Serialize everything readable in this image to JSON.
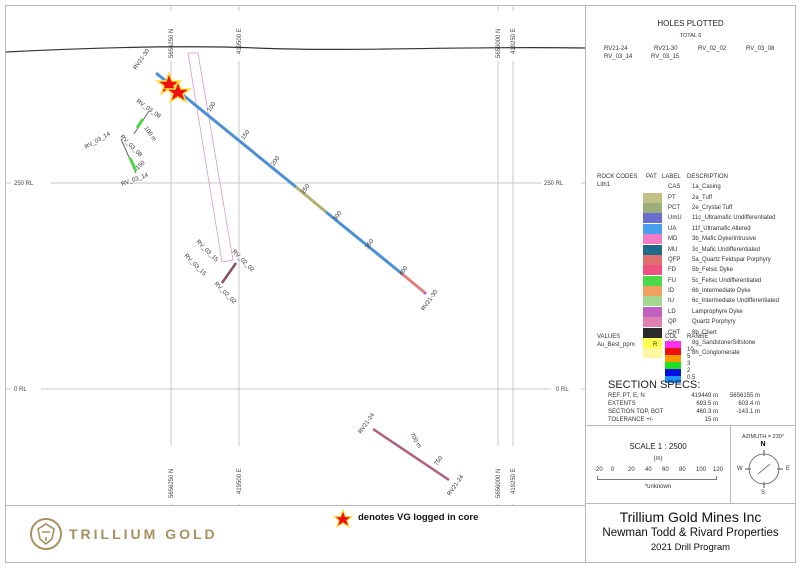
{
  "map": {
    "grid_top": [
      "5656250 N",
      "419500 E",
      "5656000 N",
      "419250 E"
    ],
    "grid_bottom": [
      "5656250 N",
      "419500 E",
      "5656000 N",
      "419250 E"
    ],
    "rl_left": [
      "250 RL",
      "0 RL"
    ],
    "rl_right": [
      "250 RL",
      "0 RL"
    ],
    "holes": {
      "rv21_30": {
        "top": "RV21-30",
        "bottom": "RV21-30",
        "depths": [
          "100",
          "150",
          "200",
          "250",
          "300",
          "350",
          "400"
        ]
      },
      "rv21_24": {
        "top": "RV21-24",
        "bottom": "RV21-24",
        "depths": [
          "700 m",
          "750"
        ]
      },
      "rv_03_08": {
        "label": "RV_03_08",
        "label2": "RV_03_08",
        "depth": "100 m"
      },
      "rv_03_14": {
        "label": "RV_03_14",
        "label2": "RV_03_14",
        "depth": "150"
      },
      "rv_03_15": {
        "label": "RV_03_15",
        "label2": "RV_03_15"
      },
      "rv_02_02": {
        "label": "RV_02_02",
        "label2": "RV_02_02"
      }
    }
  },
  "holes_plotted": {
    "title": "HOLES PLOTTED",
    "total": "TOTAL 6",
    "holes": [
      "RV21-24",
      "RV21-30",
      "RV_02_02",
      "RV_03_08",
      "RV_03_14",
      "RV_03_15"
    ]
  },
  "rock_codes": {
    "headers": [
      "ROCK CODES",
      "PAT",
      "LABEL",
      "DESCRIPTION"
    ],
    "set": "Lith1",
    "items": [
      {
        "label": "CAS",
        "desc": "1a_Casing",
        "color": ""
      },
      {
        "label": "PT",
        "desc": "2a_Tuff",
        "color": "#c2c084"
      },
      {
        "label": "PCT",
        "desc": "2e_Crystal Tuff",
        "color": "#9cae7a"
      },
      {
        "label": "UmU",
        "desc": "11c_Ultramafic Undifferentiated",
        "color": "#6a6ed0"
      },
      {
        "label": "UA",
        "desc": "11f_Ultramafic Altered",
        "color": "#4aa0ee"
      },
      {
        "label": "MD",
        "desc": "3b_Mafic Dyke/Intrusive",
        "color": "#f07cc8"
      },
      {
        "label": "MU",
        "desc": "3c_Mafic Undifferentiated",
        "color": "#1e6a8a"
      },
      {
        "label": "QFP",
        "desc": "5a_Quartz Feldspar Porphyry",
        "color": "#e07070"
      },
      {
        "label": "FD",
        "desc": "5b_Felsic Dyke",
        "color": "#ee5080"
      },
      {
        "label": "FU",
        "desc": "5c_Felsic Undifferentiated",
        "color": "#4cd848"
      },
      {
        "label": "ID",
        "desc": "6b_Intermediate Dyke",
        "color": "#f0a060"
      },
      {
        "label": "IU",
        "desc": "6c_Intermediate Undifferentiated",
        "color": "#a4d890"
      },
      {
        "label": "LD",
        "desc": "Lamprophyre Dyke",
        "color": "#c060c0"
      },
      {
        "label": "QP",
        "desc": "Quartz Porphyry",
        "color": "#e080b0"
      },
      {
        "label": "CHT",
        "desc": "8b_Chert",
        "color": "#2a2a2a"
      },
      {
        "label": "SS",
        "desc": "8g_Sandstone/Siltstone",
        "color": "#ffff50"
      },
      {
        "label": "CGL",
        "desc": "8h_Conglomerate",
        "color": "#fff6a0"
      }
    ]
  },
  "values": {
    "headers": [
      "VALUES",
      "L/R",
      "COL",
      "RANGE"
    ],
    "name": "Au_Best_ppm",
    "side": "R",
    "colors": [
      "#ff30f0",
      "#ee1010",
      "#ff9a00",
      "#20e020",
      "#0010e0",
      "#2090ff"
    ],
    "ranges": [
      "10",
      "5",
      "3",
      "2",
      "0.5"
    ]
  },
  "section_specs": {
    "title": "SECTION  SPECS:",
    "rows": [
      {
        "label": "REF. PT.  E, N",
        "v1": "419449 m",
        "v2": "5656155 m"
      },
      {
        "label": "EXTENTS",
        "v1": "693.5 m",
        "v2": "603.4 m"
      },
      {
        "label": "SECTION TOP, BOT",
        "v1": "460.3 m",
        "v2": "-143.1 m"
      },
      {
        "label": "TOLERANCE  +/-",
        "v1": "15 m",
        "v2": ""
      }
    ]
  },
  "scale": {
    "title": "SCALE  1 : 2500",
    "unit": "(m)",
    "ticks": [
      "-20",
      "0",
      "20",
      "40",
      "60",
      "80",
      "100",
      "120"
    ],
    "note": "*unknown"
  },
  "azimuth": {
    "label": "AZIMUTH = 230°",
    "n": "N",
    "s": "S",
    "e": "E",
    "w": "W"
  },
  "title_block": {
    "company": "Trillium Gold Mines Inc",
    "project": "Newman Todd & Rivard Properties",
    "program": "2021 Drill Program"
  },
  "logo": {
    "text": "TRILLIUM GOLD",
    "color": "#a8915e"
  },
  "vg_note": {
    "text": "denotes VG logged in core",
    "star_color": "#ee1010"
  }
}
